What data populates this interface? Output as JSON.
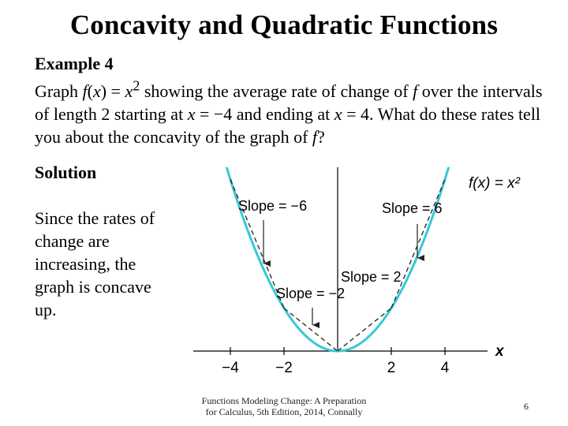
{
  "slide": {
    "title": "Concavity and Quadratic Functions",
    "example": {
      "label": "Example 4",
      "text_parts": [
        "Graph ",
        "f",
        "(",
        "x",
        ") = ",
        "x",
        "2",
        " showing the average rate of change of ",
        "f",
        " over the intervals of length 2 starting at ",
        "x",
        " = −4 and ending at ",
        "x",
        " = 4. What do these rates tell you about the concavity of the graph of ",
        "f",
        "?"
      ]
    },
    "solution": {
      "label": "Solution",
      "text": "Since the rates of change are increasing, the graph is concave up."
    },
    "footer": {
      "line1": "Functions Modeling Change: A Preparation",
      "line2": "for Calculus, 5th Edition, 2014, Connally"
    },
    "page_number": "6"
  },
  "chart_data": {
    "type": "line",
    "function_label": "f(x) = x²",
    "function": "x^2",
    "xlabel": "x",
    "xlim": [
      -5,
      5
    ],
    "ylim": [
      0,
      25
    ],
    "xticks": [
      -4,
      -2,
      2,
      4
    ],
    "xtick_labels": [
      "−4",
      "−2",
      "2",
      "4"
    ],
    "secant_points": [
      {
        "x": -4,
        "y": 16
      },
      {
        "x": -2,
        "y": 4
      },
      {
        "x": 0,
        "y": 0
      },
      {
        "x": 2,
        "y": 4
      },
      {
        "x": 4,
        "y": 16
      }
    ],
    "slope_annotations": [
      {
        "label": "Slope = −6",
        "interval": [
          -4,
          -2
        ]
      },
      {
        "label": "Slope = −2",
        "interval": [
          -2,
          0
        ]
      },
      {
        "label": "Slope = 2",
        "interval": [
          0,
          2
        ]
      },
      {
        "label": "Slope = 6",
        "interval": [
          2,
          4
        ]
      }
    ],
    "colors": {
      "curve": "#37c8d8",
      "secant": "#222222",
      "axes": "#000000"
    }
  }
}
